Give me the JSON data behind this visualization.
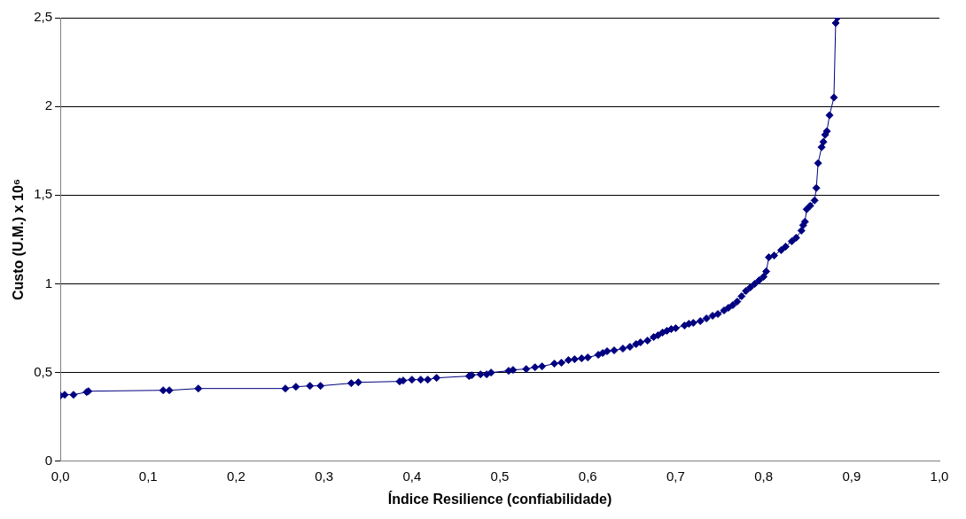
{
  "chart_data": {
    "type": "line",
    "xlabel": "Índice Resilience (confiabilidade)",
    "ylabel": "Custo (U.M.) x 10⁶",
    "xlim": [
      0,
      1
    ],
    "ylim": [
      0,
      2.5
    ],
    "xticks": [
      {
        "value": 0,
        "label": "0,0"
      },
      {
        "value": 0.1,
        "label": "0,1"
      },
      {
        "value": 0.2,
        "label": "0,2"
      },
      {
        "value": 0.3,
        "label": "0,3"
      },
      {
        "value": 0.4,
        "label": "0,4"
      },
      {
        "value": 0.5,
        "label": "0,5"
      },
      {
        "value": 0.6,
        "label": "0,6"
      },
      {
        "value": 0.7,
        "label": "0,7"
      },
      {
        "value": 0.8,
        "label": "0,8"
      },
      {
        "value": 0.9,
        "label": "0,9"
      },
      {
        "value": 1,
        "label": "1,0"
      }
    ],
    "yticks": [
      0,
      {
        "value": 0.5,
        "label": "0,5"
      },
      1,
      {
        "value": 1.5,
        "label": "1,5"
      },
      2,
      {
        "value": 2.5,
        "label": "2,5"
      }
    ],
    "grid": "y",
    "marker": "diamond",
    "line_style": "solid",
    "series": [
      {
        "color": "#000080",
        "x": [
          0.0,
          0.005,
          0.015,
          0.03,
          0.032,
          0.117,
          0.124,
          0.157,
          0.256,
          0.268,
          0.284,
          0.296,
          0.331,
          0.339,
          0.386,
          0.39,
          0.4,
          0.41,
          0.418,
          0.428,
          0.465,
          0.468,
          0.478,
          0.485,
          0.49,
          0.51,
          0.515,
          0.53,
          0.54,
          0.548,
          0.562,
          0.57,
          0.578,
          0.585,
          0.593,
          0.6,
          0.612,
          0.617,
          0.622,
          0.63,
          0.64,
          0.648,
          0.655,
          0.66,
          0.668,
          0.675,
          0.68,
          0.685,
          0.69,
          0.695,
          0.7,
          0.71,
          0.715,
          0.72,
          0.728,
          0.735,
          0.742,
          0.748,
          0.755,
          0.76,
          0.765,
          0.77,
          0.775,
          0.78,
          0.785,
          0.79,
          0.795,
          0.8,
          0.803,
          0.806,
          0.812,
          0.82,
          0.825,
          0.832,
          0.837,
          0.843,
          0.845,
          0.847,
          0.849,
          0.853,
          0.858,
          0.86,
          0.862,
          0.866,
          0.868,
          0.87,
          0.872,
          0.875,
          0.88,
          0.882,
          0.884
        ],
        "values": [
          0.37,
          0.375,
          0.375,
          0.39,
          0.395,
          0.4,
          0.4,
          0.41,
          0.41,
          0.42,
          0.425,
          0.425,
          0.44,
          0.445,
          0.45,
          0.455,
          0.46,
          0.46,
          0.46,
          0.47,
          0.48,
          0.485,
          0.49,
          0.49,
          0.5,
          0.51,
          0.515,
          0.52,
          0.53,
          0.535,
          0.55,
          0.555,
          0.57,
          0.575,
          0.58,
          0.585,
          0.6,
          0.61,
          0.62,
          0.625,
          0.635,
          0.645,
          0.66,
          0.67,
          0.68,
          0.7,
          0.71,
          0.725,
          0.735,
          0.745,
          0.75,
          0.765,
          0.775,
          0.78,
          0.79,
          0.805,
          0.82,
          0.83,
          0.85,
          0.865,
          0.88,
          0.9,
          0.93,
          0.96,
          0.98,
          1.0,
          1.02,
          1.04,
          1.07,
          1.15,
          1.16,
          1.19,
          1.21,
          1.24,
          1.26,
          1.3,
          1.33,
          1.35,
          1.42,
          1.44,
          1.47,
          1.54,
          1.68,
          1.77,
          1.8,
          1.84,
          1.86,
          1.95,
          2.05,
          2.47,
          2.5
        ]
      }
    ]
  }
}
